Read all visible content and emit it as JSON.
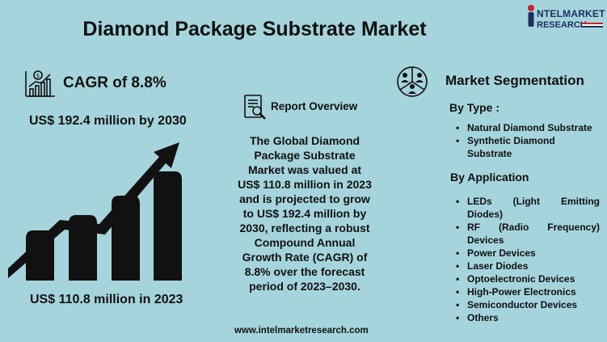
{
  "header": {
    "title": "Diamond Package Substrate Market"
  },
  "logo": {
    "line1": "NTELMARKET",
    "line2": "RESEARCH",
    "icon": "person-icon"
  },
  "left": {
    "cagr_label": "CAGR of 8.8%",
    "value_2030": "US$ 192.4 million by 2030",
    "value_2023": "US$ 110.8 million in 2023",
    "cagr_icon": "chart-growth-icon",
    "growth_icon": "bar-growth-arrow-icon"
  },
  "center": {
    "report_label": "Report Overview",
    "report_icon": "report-search-icon",
    "overview_text": "The Global Diamond Package Substrate Market was valued at US$ 110.8 million in 2023 and is projected to grow to US$ 192.4 million by 2030, reflecting a robust Compound Annual Growth Rate (CAGR) of 8.8% over the forecast period of 2023–2030.",
    "website": "www.intelmarketresearch.com"
  },
  "right": {
    "segmentation_label": "Market Segmentation",
    "segmentation_icon": "people-pie-icon",
    "by_type_label": "By Type :",
    "types": [
      "Natural Diamond Substrate",
      "Synthetic Diamond Substrate"
    ],
    "by_application_label": "By Application",
    "applications": [
      "LEDs (Light Emitting Diodes)",
      "RF (Radio Frequency) Devices",
      "Power Devices",
      "Laser Diodes",
      "Optoelectronic Devices",
      "High-Power Electronics",
      "Semiconductor Devices",
      "Others"
    ]
  },
  "colors": {
    "background": "#a5d4dc",
    "text": "#111111",
    "logo_navy": "#1c2f5e",
    "logo_red": "#d0202a"
  }
}
